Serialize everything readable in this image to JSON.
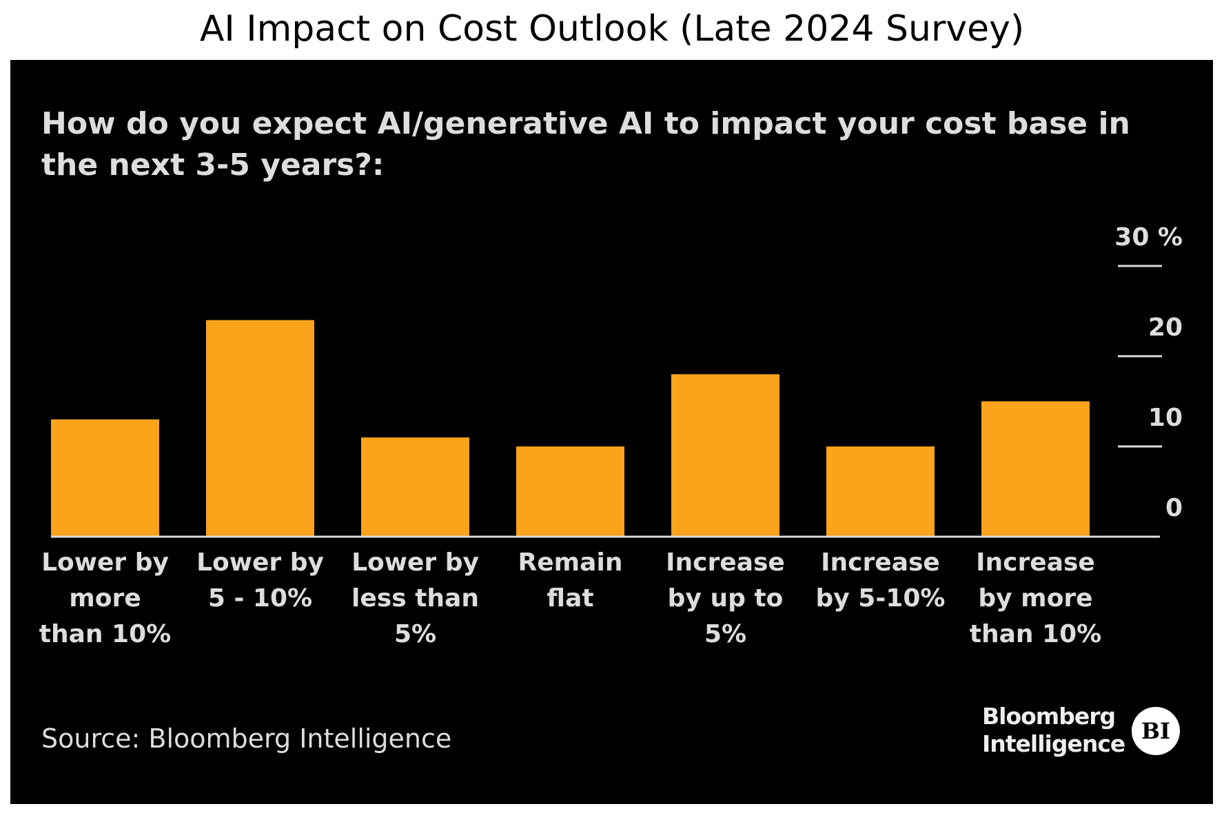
{
  "chart_data": {
    "type": "bar",
    "title": "AI Impact on Cost Outlook (Late 2024 Survey)",
    "subtitle": "How do you expect AI/generative AI to impact your cost base in the next 3-5 years?:",
    "categories": [
      "Lower by more than 10%",
      "Lower by 5 - 10%",
      "Lower by less than 5%",
      "Remain flat",
      "Increase by up to 5%",
      "Increase by 5-10%",
      "Increase by more than 10%"
    ],
    "values": [
      13,
      24,
      11,
      10,
      18,
      10,
      15
    ],
    "color": "#fca31c",
    "ylim": [
      0,
      30
    ],
    "yticks": [
      0,
      10,
      20,
      {
        "value": 30,
        "label": "30 %"
      }
    ],
    "y_axis_side": "right",
    "grid": false,
    "source": "Source: Bloomberg Intelligence",
    "logo_text": "Bloomberg Intelligence",
    "logo_mark": "BI"
  }
}
